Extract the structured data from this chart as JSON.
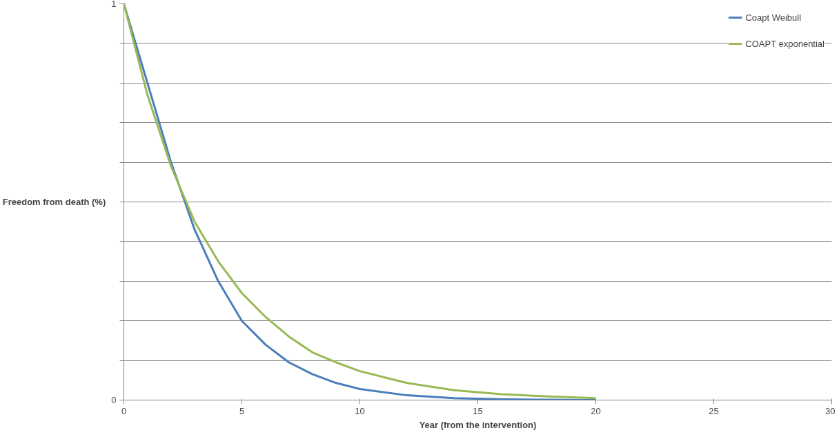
{
  "chart_data": {
    "type": "line",
    "xlabel": "Year (from the intervention)",
    "ylabel": "Freedom from death (%)",
    "x": [
      0,
      1,
      2,
      3,
      4,
      5,
      6,
      7,
      8,
      9,
      10,
      12,
      14,
      16,
      18,
      20
    ],
    "series": [
      {
        "name": "Coapt Weibull",
        "color": "#4a7ebb",
        "values": [
          1,
          0.8,
          0.6,
          0.43,
          0.3,
          0.2,
          0.14,
          0.095,
          0.065,
          0.043,
          0.028,
          0.012,
          0.005,
          0.002,
          0.001,
          0
        ]
      },
      {
        "name": "COAPT exponential",
        "color": "#98b954",
        "values": [
          1,
          0.77,
          0.59,
          0.45,
          0.35,
          0.27,
          0.21,
          0.16,
          0.12,
          0.095,
          0.073,
          0.043,
          0.025,
          0.015,
          0.009,
          0.005
        ]
      }
    ],
    "xlim": [
      0,
      30
    ],
    "xticks": [
      0,
      5,
      10,
      15,
      20,
      25,
      30
    ],
    "ylim": [
      0,
      1
    ],
    "yticks": [
      0,
      {
        "value": 0.1,
        "label": null
      },
      {
        "value": 0.2,
        "label": null
      },
      {
        "value": 0.3,
        "label": null
      },
      {
        "value": 0.4,
        "label": null
      },
      {
        "value": 0.5,
        "label": null
      },
      {
        "value": 0.6,
        "label": null
      },
      {
        "value": 0.7,
        "label": null
      },
      {
        "value": 0.8,
        "label": null
      },
      {
        "value": 0.9,
        "label": null
      },
      1
    ],
    "grid": "y",
    "legend": "top right",
    "marker": "none",
    "line_style": "solid"
  }
}
